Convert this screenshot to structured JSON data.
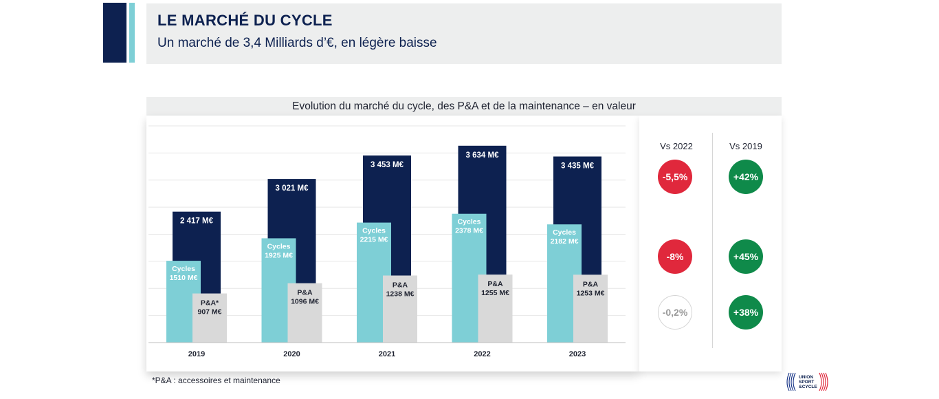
{
  "header": {
    "title": "LE MARCHÉ DU CYCLE",
    "subtitle": "Un marché de 3,4 Milliards d’€, en légère baisse"
  },
  "chart_data": {
    "type": "bar",
    "title": "Evolution du marché du cycle, des P&A et de la maintenance – en valeur",
    "categories": [
      "2019",
      "2020",
      "2021",
      "2022",
      "2023"
    ],
    "series": [
      {
        "values": [
          2417,
          3021,
          3453,
          3634,
          3435
        ],
        "labels": [
          "2 417 M€",
          "3 021 M€",
          "3 453 M€",
          "3 634 M€",
          "3 435 M€"
        ],
        "color": "#0d2150"
      },
      {
        "name": "Cycles",
        "values": [
          1510,
          1925,
          2215,
          2378,
          2182
        ],
        "labels": [
          "1510 M€",
          "1925 M€",
          "2215 M€",
          "2378 M€",
          "2182 M€"
        ],
        "color": "#7ecfd6"
      },
      {
        "name": "P&A",
        "values": [
          907,
          1096,
          1238,
          1255,
          1253
        ],
        "labels": [
          "907 M€",
          "1096 M€",
          "1238 M€",
          "1255 M€",
          "1253 M€"
        ],
        "color": "#d9d9d9"
      }
    ],
    "series_tags": [
      "Cycles",
      "P&A*",
      "P&A",
      "P&A",
      "P&A",
      "P&A"
    ],
    "ylim": [
      0,
      4000
    ],
    "grid": true
  },
  "comparison": {
    "headers": [
      "Vs 2022",
      "Vs 2019"
    ],
    "rows": [
      {
        "vs2022": "-5,5%",
        "vs2022_color": "#e0283c",
        "vs2019": "+42%",
        "vs2019_color": "#0f8a4a"
      },
      {
        "vs2022": "-8%",
        "vs2022_color": "#e0283c",
        "vs2019": "+45%",
        "vs2019_color": "#0f8a4a"
      },
      {
        "vs2022": "-0,2%",
        "vs2022_color": "#ffffff",
        "vs2019": "+38%",
        "vs2019_color": "#0f8a4a"
      }
    ]
  },
  "footnote": "*P&A : accessoires et maintenance",
  "logo": {
    "line1": "UNION",
    "line2": "SPORT",
    "line3": "&CYCLE"
  }
}
